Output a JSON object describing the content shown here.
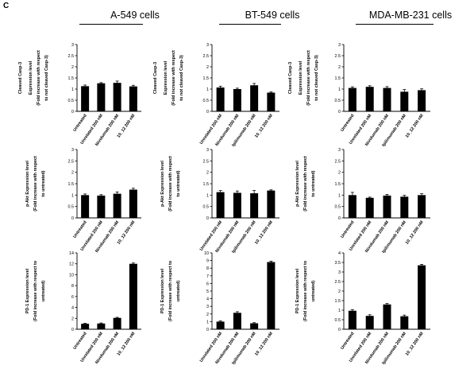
{
  "panel_label": "C",
  "column_titles": [
    "A-549 cells",
    "BT-549 cells",
    "MDA-MB-231 cells"
  ],
  "row_ylabels": [
    [
      "Cleaved Casp-3",
      "Expression level",
      "(Fold increase with respect",
      "to not cleaved Casp-3)"
    ],
    [
      "p-Akt Expression level",
      "(Fold increase with respect",
      "to untreated)"
    ],
    [
      "PD-1 Expression level",
      "(Fold increase with respect to",
      "untreated)"
    ]
  ],
  "chart_data": [
    {
      "type": "bar",
      "row": 0,
      "col": 0,
      "ylabel": "Cleaved Casp-3 Expression level (Fold increase with respect to not cleaved Casp-3)",
      "categories": [
        "Untreated",
        "Unrelated 200 nM",
        "Nivolumab 200 nM",
        "10_12 200 nM"
      ],
      "values": [
        1.13,
        1.26,
        1.28,
        1.12
      ],
      "errors": [
        0.05,
        0.03,
        0.08,
        0.05
      ],
      "ylim": [
        0,
        3
      ],
      "yticks": [
        "0",
        "0.5",
        "1",
        "1.5",
        "2",
        "2.5",
        "3"
      ]
    },
    {
      "type": "bar",
      "row": 0,
      "col": 1,
      "ylabel": "Cleaved Casp-3 Expression level (Fold increase with respect to not cleaved Casp-3)",
      "categories": [
        "Unrelated 200 nM",
        "Nivolumab 200 nM",
        "Ipilimumab 200 nM",
        "10_12 200 nM"
      ],
      "values": [
        1.07,
        1.0,
        1.17,
        0.84
      ],
      "errors": [
        0.06,
        0.04,
        0.08,
        0.03
      ],
      "ylim": [
        0,
        3
      ],
      "yticks": [
        "0",
        "0.5",
        "1",
        "1.5",
        "2",
        "2.5",
        "3"
      ]
    },
    {
      "type": "bar",
      "row": 0,
      "col": 2,
      "ylabel": "Cleaved Casp-3 Expression level (Fold increase with respect to not cleaved Casp-3)",
      "categories": [
        "Untreated",
        "Unrelated 200 nM",
        "Nivolumab 200 nM",
        "Ipilimumab 200 nM",
        "10_12 200 nM"
      ],
      "values": [
        1.05,
        1.1,
        1.05,
        0.88,
        0.95
      ],
      "errors": [
        0.05,
        0.05,
        0.06,
        0.1,
        0.06
      ],
      "ylim": [
        0,
        3
      ],
      "yticks": [
        "0",
        "0.5",
        "1",
        "1.5",
        "2",
        "2.5",
        "3"
      ]
    },
    {
      "type": "bar",
      "row": 1,
      "col": 0,
      "ylabel": "p-Akt Expression level (Fold increase with respect to untreated)",
      "categories": [
        "Untreated",
        "Unrelated 200 nM",
        "Nivolumab 200 nM",
        "10_12 200 nM"
      ],
      "values": [
        1.0,
        0.98,
        1.06,
        1.24
      ],
      "errors": [
        0.05,
        0.04,
        0.08,
        0.06
      ],
      "ylim": [
        0,
        3
      ],
      "yticks": [
        "0",
        "0.5",
        "1",
        "1.5",
        "2",
        "2.5",
        "3"
      ]
    },
    {
      "type": "bar",
      "row": 1,
      "col": 1,
      "ylabel": "p-Akt Expression level (Fold increase with respect to untreated)",
      "categories": [
        "Unrelated 200 nM",
        "Nivolumab 200 nM",
        "Ipilimumab 200 nM",
        "10_12 200 nM"
      ],
      "values": [
        1.13,
        1.1,
        1.08,
        1.2
      ],
      "errors": [
        0.07,
        0.08,
        0.12,
        0.03
      ],
      "ylim": [
        0,
        3
      ],
      "yticks": [
        "0",
        "0.5",
        "1",
        "1.5",
        "2",
        "2.5",
        "3"
      ]
    },
    {
      "type": "bar",
      "row": 1,
      "col": 2,
      "ylabel": "p-Akt Expression level (Fold increase with respect to untreated)",
      "categories": [
        "Untreated",
        "Unrelated 200 nM",
        "Nivolumab 200 nM",
        "Ipilimumab 200 nM",
        "10_12 200 nM"
      ],
      "values": [
        1.0,
        0.88,
        0.98,
        0.93,
        1.0
      ],
      "errors": [
        0.12,
        0.03,
        0.05,
        0.06,
        0.06
      ],
      "ylim": [
        0,
        3
      ],
      "yticks": [
        "0",
        "0.5",
        "1",
        "1.5",
        "2",
        "2.5",
        "3"
      ]
    },
    {
      "type": "bar",
      "row": 2,
      "col": 0,
      "ylabel": "PD-1 Expression level (Fold increase with respect to untreated)",
      "categories": [
        "Untreated",
        "Unrelated 200 nM",
        "Nivolumab 200 nM",
        "10_12 200 nM"
      ],
      "values": [
        1.0,
        1.05,
        2.08,
        12.0
      ],
      "errors": [
        0.08,
        0.1,
        0.1,
        0.15
      ],
      "ylim": [
        0,
        14
      ],
      "yticks": [
        "0",
        "2",
        "4",
        "6",
        "8",
        "10",
        "12",
        "14"
      ]
    },
    {
      "type": "bar",
      "row": 2,
      "col": 1,
      "ylabel": "PD-1 Expression level (Fold increase with respect to untreated)",
      "categories": [
        "Unrelated 200 nM",
        "Nivolumab 200 nM",
        "Ipilimumab 200 nM",
        "10_12 200 nM"
      ],
      "values": [
        1.0,
        2.15,
        0.78,
        8.8
      ],
      "errors": [
        0.1,
        0.15,
        0.08,
        0.12
      ],
      "ylim": [
        0,
        10
      ],
      "yticks": [
        "0",
        "1",
        "2",
        "3",
        "4",
        "5",
        "6",
        "7",
        "8",
        "9",
        "10"
      ]
    },
    {
      "type": "bar",
      "row": 2,
      "col": 2,
      "ylabel": "PD-1 Expression level (Fold increase with respect to untreated)",
      "categories": [
        "Untreated",
        "Unrelated 200 nM",
        "Nivolumab 200 nM",
        "Ipilimumab 200 nM",
        "10_12 200 nM"
      ],
      "values": [
        0.97,
        0.7,
        1.3,
        0.68,
        3.35
      ],
      "errors": [
        0.06,
        0.06,
        0.05,
        0.06,
        0.05
      ],
      "ylim": [
        0,
        4
      ],
      "yticks": [
        "0",
        "0.5",
        "1",
        "1.5",
        "2",
        "2.5",
        "3",
        "3.5",
        "4"
      ]
    }
  ]
}
